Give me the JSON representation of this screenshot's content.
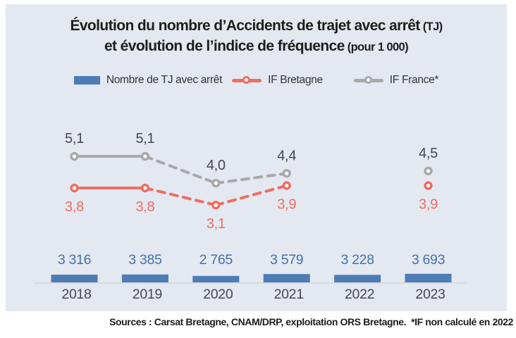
{
  "title": {
    "line1_main": "Évolution du nombre d’Accidents de trajet avec arrêt",
    "line1_paren": "(TJ)",
    "line2_main": "et évolution de l’indice de fréquence",
    "line2_paren": "(pour 1 000)"
  },
  "legend": {
    "items": [
      {
        "label": "Nombre de TJ avec arrêt",
        "marker": "bar-swatch",
        "color": "#4e7cb5"
      },
      {
        "label": "IF Bretagne",
        "marker": "line-circle",
        "color": "#ee6e62"
      },
      {
        "label": "IF France*",
        "marker": "line-circle",
        "color": "#a8a8a8"
      }
    ]
  },
  "chart_data": {
    "type": "bar+line",
    "categories": [
      "2018",
      "2019",
      "2020",
      "2021",
      "2022",
      "2023"
    ],
    "series": [
      {
        "name": "Nombre de TJ avec arrêt",
        "type": "bar",
        "color": "#4e7cb5",
        "values": [
          3316,
          3385,
          2765,
          3579,
          3228,
          3693
        ],
        "labels": [
          "3 316",
          "3 385",
          "2 765",
          "3 579",
          "3 228",
          "3 693"
        ],
        "label_color": "#4173ad"
      },
      {
        "name": "IF Bretagne",
        "type": "line",
        "color": "#ee6e62",
        "values": [
          3.8,
          3.8,
          3.1,
          3.9,
          null,
          3.9
        ],
        "labels": [
          "3,8",
          "3,8",
          "3,1",
          "3,9",
          "",
          "3,9"
        ],
        "label_color": "#ee6e62",
        "label_side": "below",
        "solid_to": 1
      },
      {
        "name": "IF France*",
        "type": "line",
        "color": "#a8a8a8",
        "values": [
          5.1,
          5.1,
          4.0,
          4.4,
          null,
          4.5
        ],
        "labels": [
          "5,1",
          "5,1",
          "4,0",
          "4,4",
          "",
          "4,5"
        ],
        "label_color": "#45484c",
        "label_side": "above",
        "solid_to": 1
      }
    ],
    "year_label_color": "#45484c",
    "axis_color": "#d3d7de",
    "background": "#e4e8f0",
    "legend_position": "top",
    "grid": false,
    "footnote": "*IF non calculé en 2022"
  },
  "source": {
    "text": "Sources : Carsat Bretagne, CNAM/DRP, exploitation ORS Bretagne.  *IF non calculé en 2022"
  }
}
